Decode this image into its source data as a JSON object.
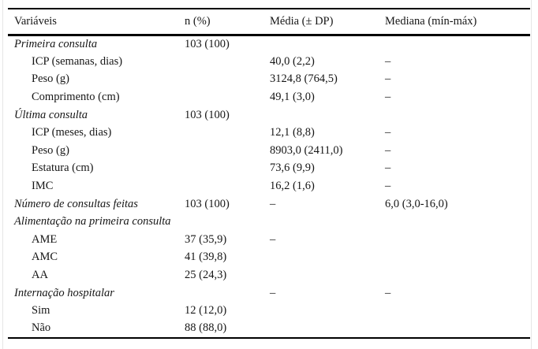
{
  "page": {
    "rule_color": "#000000",
    "text_color": "#161616",
    "edge_line_color": "#e6e6e6"
  },
  "table": {
    "columns": [
      "Variáveis",
      "n (%)",
      "Média (± DP)",
      "Mediana (mín-máx)"
    ],
    "rows": [
      {
        "label": "Primeira consulta",
        "variant": "group",
        "n": "103 (100)",
        "media": "",
        "mediana": ""
      },
      {
        "label": "ICP (semanas, dias)",
        "variant": "item",
        "n": "",
        "media": "40,0 (2,2)",
        "mediana": "–"
      },
      {
        "label": "Peso (g)",
        "variant": "item",
        "n": "",
        "media": "3124,8 (764,5)",
        "mediana": "–"
      },
      {
        "label": "Comprimento (cm)",
        "variant": "item",
        "n": "",
        "media": "49,1 (3,0)",
        "mediana": "–"
      },
      {
        "label": "Última consulta",
        "variant": "group",
        "n": "103 (100)",
        "media": "",
        "mediana": ""
      },
      {
        "label": "ICP (meses, dias)",
        "variant": "item",
        "n": "",
        "media": "12,1 (8,8)",
        "mediana": "–"
      },
      {
        "label": "Peso (g)",
        "variant": "item",
        "n": "",
        "media": "8903,0 (2411,0)",
        "mediana": "–"
      },
      {
        "label": "Estatura (cm)",
        "variant": "item",
        "n": "",
        "media": "73,6 (9,9)",
        "mediana": "–"
      },
      {
        "label": "IMC",
        "variant": "item",
        "n": "",
        "media": "16,2 (1,6)",
        "mediana": "–"
      },
      {
        "label": "Número de consultas feitas",
        "variant": "group",
        "n": "103 (100)",
        "media": "–",
        "mediana": "6,0 (3,0-16,0)"
      },
      {
        "label": "Alimentação na primeira consulta",
        "variant": "group",
        "n": "",
        "media": "",
        "mediana": ""
      },
      {
        "label": "AME",
        "variant": "item",
        "n": "37 (35,9)",
        "media": "–",
        "mediana": ""
      },
      {
        "label": "AMC",
        "variant": "item",
        "n": "41 (39,8)",
        "media": "",
        "mediana": ""
      },
      {
        "label": "AA",
        "variant": "item",
        "n": "25 (24,3)",
        "media": "",
        "mediana": ""
      },
      {
        "label": "Internação hospitalar",
        "variant": "group",
        "n": "",
        "media": "–",
        "mediana": "–"
      },
      {
        "label": "Sim",
        "variant": "item",
        "n": "12 (12,0)",
        "media": "",
        "mediana": ""
      },
      {
        "label": "Não",
        "variant": "item",
        "n": "88 (88,0)",
        "media": "",
        "mediana": ""
      }
    ]
  }
}
